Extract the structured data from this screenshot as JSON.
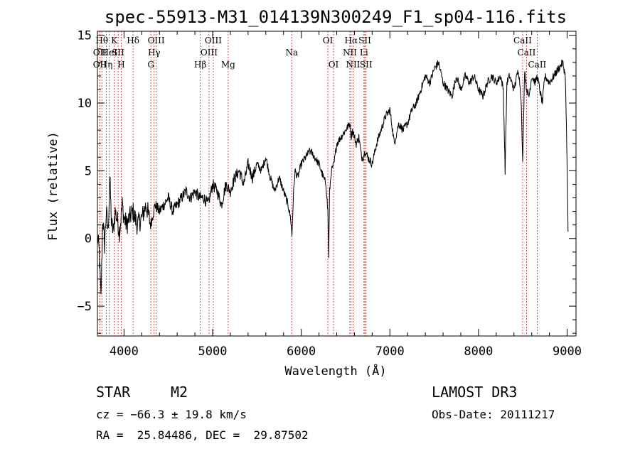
{
  "chart_data": {
    "type": "line",
    "title": "spec-55913-M31_014139N300249_F1_sp04-116.fits",
    "xlabel": "Wavelength (Å)",
    "ylabel": "Flux (relative)",
    "xlim": [
      3700,
      9100
    ],
    "ylim": [
      -7.2,
      15.3
    ],
    "xticks": [
      4000,
      5000,
      6000,
      7000,
      8000,
      9000
    ],
    "yticks": [
      -5,
      0,
      5,
      10,
      15
    ],
    "series": [
      {
        "name": "flux",
        "x": [
          3700,
          3720,
          3740,
          3760,
          3780,
          3800,
          3820,
          3840,
          3860,
          3880,
          3900,
          3920,
          3950,
          3980,
          4000,
          4030,
          4060,
          4100,
          4150,
          4200,
          4250,
          4300,
          4350,
          4400,
          4450,
          4500,
          4550,
          4600,
          4650,
          4700,
          4750,
          4800,
          4850,
          4900,
          4950,
          5000,
          5050,
          5100,
          5150,
          5200,
          5250,
          5300,
          5350,
          5400,
          5450,
          5500,
          5550,
          5600,
          5650,
          5700,
          5750,
          5800,
          5850,
          5880,
          5895,
          5910,
          5930,
          5960,
          6000,
          6050,
          6100,
          6150,
          6200,
          6250,
          6280,
          6300,
          6310,
          6320,
          6340,
          6370,
          6400,
          6450,
          6500,
          6550,
          6562,
          6580,
          6620,
          6650,
          6680,
          6700,
          6720,
          6750,
          6800,
          6850,
          6900,
          6950,
          7000,
          7050,
          7100,
          7150,
          7200,
          7250,
          7300,
          7350,
          7400,
          7450,
          7500,
          7550,
          7600,
          7650,
          7700,
          7750,
          7800,
          7850,
          7900,
          7950,
          8000,
          8050,
          8100,
          8150,
          8200,
          8250,
          8280,
          8300,
          8320,
          8350,
          8400,
          8450,
          8480,
          8498,
          8520,
          8542,
          8570,
          8600,
          8640,
          8662,
          8690,
          8720,
          8750,
          8800,
          8850,
          8900,
          8950,
          8980,
          9000,
          9010
        ],
        "y": [
          0.2,
          -1.0,
          -4.5,
          1.5,
          -0.5,
          2.0,
          0.5,
          4.5,
          1.0,
          0.5,
          2.0,
          1.5,
          0.5,
          2.5,
          1.5,
          1.0,
          1.5,
          2.0,
          1.0,
          1.5,
          2.5,
          1.0,
          2.5,
          2.0,
          2.5,
          3.0,
          2.0,
          2.5,
          3.0,
          3.5,
          3.0,
          3.5,
          3.0,
          3.0,
          2.5,
          4.0,
          3.5,
          2.5,
          4.0,
          3.5,
          4.5,
          5.0,
          4.0,
          5.5,
          4.5,
          5.5,
          5.0,
          6.0,
          4.5,
          3.5,
          4.5,
          3.5,
          2.5,
          1.5,
          0.2,
          3.0,
          5.0,
          4.5,
          5.5,
          6.0,
          6.5,
          6.0,
          5.5,
          4.5,
          4.0,
          2.0,
          -1.3,
          3.5,
          5.0,
          5.5,
          7.0,
          7.5,
          8.0,
          8.5,
          7.5,
          8.0,
          7.0,
          7.5,
          6.0,
          6.0,
          6.5,
          6.0,
          5.5,
          7.0,
          8.0,
          9.0,
          9.5,
          7.0,
          8.5,
          8.0,
          8.5,
          9.5,
          10.0,
          11.0,
          12.0,
          11.5,
          12.5,
          13.0,
          11.5,
          11.0,
          10.5,
          12.0,
          11.0,
          12.0,
          11.5,
          12.0,
          11.0,
          10.5,
          11.5,
          12.0,
          11.5,
          12.0,
          11.0,
          5.0,
          11.5,
          12.0,
          11.0,
          12.5,
          10.5,
          5.5,
          12.5,
          11.0,
          10.5,
          12.0,
          11.5,
          12.0,
          11.0,
          10.0,
          12.0,
          11.5,
          12.0,
          12.5,
          13.0,
          12.0,
          5.5,
          0.5
        ]
      }
    ],
    "emission_lines": [
      {
        "w": 3750,
        "label": "Hθ",
        "row": 0
      },
      {
        "w": 3727,
        "label": "OII",
        "row": 1
      },
      {
        "w": 3727,
        "label": "OII",
        "row": 2
      },
      {
        "w": 3800,
        "label": "Hη",
        "row": 2
      },
      {
        "w": 3835,
        "label": "HeI",
        "row": 1
      },
      {
        "w": 3889,
        "label": "K",
        "row": 0
      },
      {
        "w": 3934,
        "label": "SII",
        "row": 1
      },
      {
        "w": 3969,
        "label": "H",
        "row": 2
      },
      {
        "w": 4102,
        "label": "Hδ",
        "row": 0
      },
      {
        "w": 4303,
        "label": "G",
        "row": 2
      },
      {
        "w": 4340,
        "label": "Hγ",
        "row": 1
      },
      {
        "w": 4363,
        "label": "OIII",
        "row": 0
      },
      {
        "w": 4861,
        "label": "Hβ",
        "row": 2
      },
      {
        "w": 4959,
        "label": "OIII",
        "row": 1
      },
      {
        "w": 5007,
        "label": "OIII",
        "row": 0
      },
      {
        "w": 5175,
        "label": "Mg",
        "row": 2
      },
      {
        "w": 5893,
        "label": "Na",
        "row": 1
      },
      {
        "w": 6300,
        "label": "OI",
        "row": 0
      },
      {
        "w": 6364,
        "label": "OI",
        "row": 2
      },
      {
        "w": 6548,
        "label": "NII",
        "row": 1
      },
      {
        "w": 6563,
        "label": "Hα",
        "row": 0
      },
      {
        "w": 6584,
        "label": "NII",
        "row": 2
      },
      {
        "w": 6707,
        "label": "Li",
        "row": 1
      },
      {
        "w": 6717,
        "label": "SII",
        "row": 0
      },
      {
        "w": 6731,
        "label": "SII",
        "row": 2
      },
      {
        "w": 8498,
        "label": "CaII",
        "row": 0
      },
      {
        "w": 8542,
        "label": "CaII",
        "row": 1
      },
      {
        "w": 8662,
        "label": "CaII",
        "row": 2
      }
    ]
  },
  "info": {
    "class": "STAR",
    "subclass": "M2",
    "survey": "LAMOST DR3",
    "cz": "cz = −66.3 ± 19.8 km/s",
    "obs_date": "Obs-Date: 20111217",
    "radec": "RA =  25.84486, DEC =  29.87502"
  },
  "colors": {
    "line_marker": "#cc2222",
    "spectrum": "#000000"
  }
}
